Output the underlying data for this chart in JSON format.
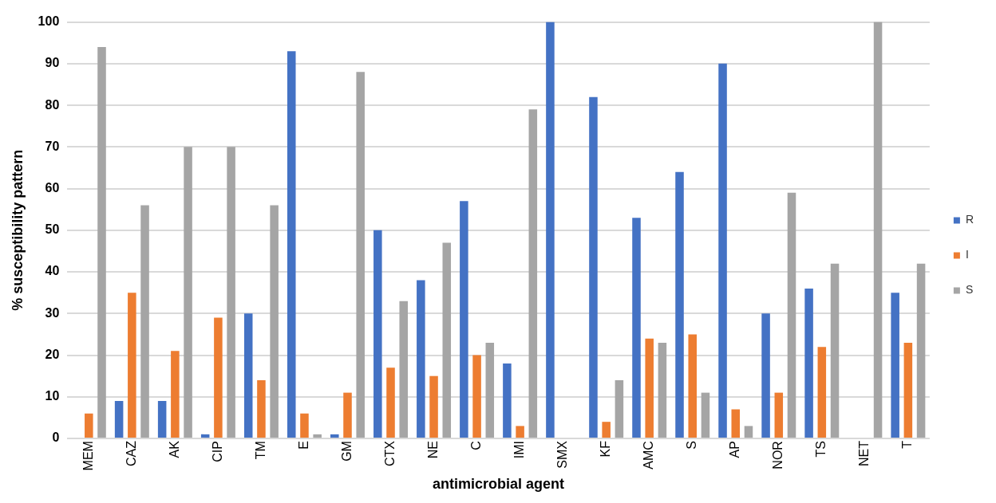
{
  "chart_data": {
    "type": "bar",
    "xlabel": "antimicrobial agent",
    "ylabel": "% susceptibility pattern",
    "categories": [
      "MEM",
      "CAZ",
      "AK",
      "CIP",
      "TM",
      "E",
      "GM",
      "CTX",
      "NE",
      "C",
      "IMI",
      "SMX",
      "KF",
      "AMC",
      "S",
      "AP",
      "NOR",
      "TS",
      "NET",
      "T"
    ],
    "series": [
      {
        "name": "R",
        "color": "#4472c4",
        "values": [
          0,
          9,
          9,
          1,
          30,
          93,
          1,
          50,
          38,
          57,
          18,
          100,
          82,
          53,
          64,
          90,
          30,
          36,
          0,
          35
        ]
      },
      {
        "name": "I",
        "color": "#ed7d31",
        "values": [
          6,
          35,
          21,
          29,
          14,
          6,
          11,
          17,
          15,
          20,
          3,
          0,
          4,
          24,
          25,
          7,
          11,
          22,
          0,
          23
        ]
      },
      {
        "name": "S",
        "color": "#a5a5a5",
        "values": [
          94,
          56,
          70,
          70,
          56,
          1,
          88,
          33,
          47,
          23,
          79,
          0,
          14,
          23,
          11,
          3,
          59,
          42,
          100,
          42
        ]
      }
    ],
    "ylim": [
      0,
      100
    ],
    "yticks": [
      0,
      10,
      20,
      30,
      40,
      50,
      60,
      70,
      80,
      90,
      100
    ],
    "grid": "y",
    "legend": "right"
  }
}
